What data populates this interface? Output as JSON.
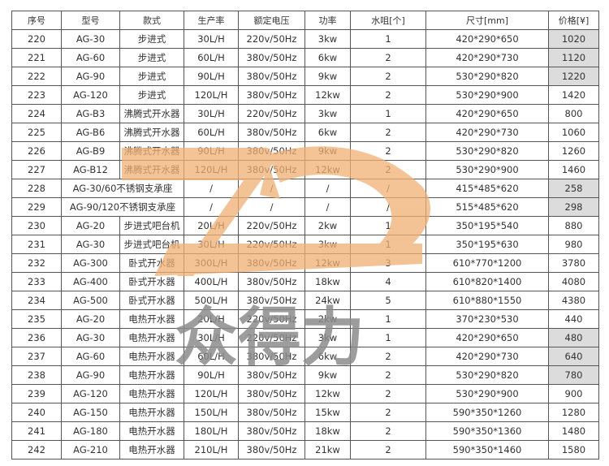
{
  "headers": [
    "序号",
    "型号",
    "款式",
    "生产率",
    "额定电压",
    "功率",
    "水咀[个]",
    "尺寸[mm]",
    "价格[¥]"
  ],
  "rows": [
    {
      "no": "220",
      "model": "AG-30",
      "style": "步进式",
      "rate": "30L/H",
      "voltage": "220v/50Hz",
      "power": "3kw",
      "taps": "1",
      "size": "420*290*650",
      "price": "1020",
      "highlight": true
    },
    {
      "no": "221",
      "model": "AG-60",
      "style": "步进式",
      "rate": "60L/H",
      "voltage": "380v/50Hz",
      "power": "6kw",
      "taps": "2",
      "size": "420*290*730",
      "price": "1120",
      "highlight": true
    },
    {
      "no": "222",
      "model": "AG-90",
      "style": "步进式",
      "rate": "90L/H",
      "voltage": "380v/50Hz",
      "power": "9kw",
      "taps": "2",
      "size": "530*290*820",
      "price": "1220",
      "highlight": true
    },
    {
      "no": "223",
      "model": "AG-120",
      "style": "步进式",
      "rate": "120L/H",
      "voltage": "380v/50Hz",
      "power": "12kw",
      "taps": "2",
      "size": "530*290*900",
      "price": "1420",
      "highlight": false
    },
    {
      "no": "224",
      "model": "AG-B3",
      "style": "沸腾式开水器",
      "rate": "30L/H",
      "voltage": "220v/50Hz",
      "power": "3kw",
      "taps": "1",
      "size": "420*290*650",
      "price": "800",
      "highlight": false
    },
    {
      "no": "225",
      "model": "AG-B6",
      "style": "沸腾式开水器",
      "rate": "60L/H",
      "voltage": "380v/50Hz",
      "power": "6kw",
      "taps": "2",
      "size": "420*290*730",
      "price": "1060",
      "highlight": false
    },
    {
      "no": "226",
      "model": "AG-B9",
      "style": "沸腾式开水器",
      "rate": "90L/H",
      "voltage": "380v/50Hz",
      "power": "9kw",
      "taps": "2",
      "size": "530*290*820",
      "price": "1260",
      "highlight": false
    },
    {
      "no": "227",
      "model": "AG-B12",
      "style": "沸腾式开水器",
      "rate": "120L/H",
      "voltage": "380v/50Hz",
      "power": "12kw",
      "taps": "2",
      "size": "530*290*900",
      "price": "1460",
      "highlight": false
    },
    {
      "no": "228",
      "model": "AG-30/60不锈钢支承座",
      "style": null,
      "rate": "/",
      "voltage": "/",
      "power": "/",
      "taps": "/",
      "size": "415*485*620",
      "price": "258",
      "highlight": true
    },
    {
      "no": "229",
      "model": "AG-90/120不锈钢支承座",
      "style": null,
      "rate": "/",
      "voltage": "/",
      "power": "/",
      "taps": "/",
      "size": "515*485*620",
      "price": "298",
      "highlight": true
    },
    {
      "no": "230",
      "model": "AG-20",
      "style": "步进式吧台机",
      "rate": "20L/H",
      "voltage": "220v/50Hz",
      "power": "2kw",
      "taps": "1",
      "size": "350*195*540",
      "price": "880",
      "highlight": false
    },
    {
      "no": "231",
      "model": "AG-30",
      "style": "步进式吧台机",
      "rate": "30L/H",
      "voltage": "220v/50Hz",
      "power": "3kw",
      "taps": "1",
      "size": "350*195*630",
      "price": "980",
      "highlight": false
    },
    {
      "no": "232",
      "model": "AG-300",
      "style": "卧式开水器",
      "rate": "300L/H",
      "voltage": "380v/50Hz",
      "power": "12kw",
      "taps": "3",
      "size": "610*770*1200",
      "price": "3780",
      "highlight": false
    },
    {
      "no": "233",
      "model": "AG-400",
      "style": "卧式开水器",
      "rate": "400L/H",
      "voltage": "380v/50Hz",
      "power": "18kw",
      "taps": "4",
      "size": "610*820*1400",
      "price": "4080",
      "highlight": false
    },
    {
      "no": "234",
      "model": "AG-500",
      "style": "卧式开水器",
      "rate": "500L/H",
      "voltage": "380v/50Hz",
      "power": "24kw",
      "taps": "5",
      "size": "610*880*1550",
      "price": "4380",
      "highlight": false
    },
    {
      "no": "235",
      "model": "AG-20",
      "style": "电热开水器",
      "rate": "20L/H",
      "voltage": "220v/50Hz",
      "power": "2kw",
      "taps": "1",
      "size": "370*230*530",
      "price": "440",
      "highlight": false
    },
    {
      "no": "236",
      "model": "AG-30",
      "style": "电热开水器",
      "rate": "30L/H",
      "voltage": "220v/50Hz",
      "power": "3kw",
      "taps": "1",
      "size": "420*290*650",
      "price": "480",
      "highlight": true
    },
    {
      "no": "237",
      "model": "AG-60",
      "style": "电热开水器",
      "rate": "60L/H",
      "voltage": "380v/50Hz",
      "power": "6kw",
      "taps": "2",
      "size": "420*290*730",
      "price": "640",
      "highlight": true
    },
    {
      "no": "238",
      "model": "AG-90",
      "style": "电热开水器",
      "rate": "90L/H",
      "voltage": "380v/50Hz",
      "power": "9kw",
      "taps": "2",
      "size": "530*290*820",
      "price": "780",
      "highlight": true
    },
    {
      "no": "239",
      "model": "AG-120",
      "style": "电热开水器",
      "rate": "120L/H",
      "voltage": "380v/50Hz",
      "power": "12kw",
      "taps": "2",
      "size": "530*290*900",
      "price": "900",
      "highlight": false
    },
    {
      "no": "240",
      "model": "AG-150",
      "style": "电热开水器",
      "rate": "150L/H",
      "voltage": "380v/50Hz",
      "power": "15kw",
      "taps": "2",
      "size": "590*350*1260",
      "price": "1280",
      "highlight": false
    },
    {
      "no": "241",
      "model": "AG-180",
      "style": "电热开水器",
      "rate": "180L/H",
      "voltage": "380v/50Hz",
      "power": "18kw",
      "taps": "2",
      "size": "590*350*1360",
      "price": "1480",
      "highlight": false
    },
    {
      "no": "242",
      "model": "AG-210",
      "style": "电热开水器",
      "rate": "210L/H",
      "voltage": "380v/50Hz",
      "power": "21kw",
      "taps": "2",
      "size": "590*350*1460",
      "price": "1580",
      "highlight": false
    }
  ],
  "watermark": {
    "text": "众得力",
    "logo_color": "#f0b074",
    "text_color": "#8c8c8c"
  }
}
